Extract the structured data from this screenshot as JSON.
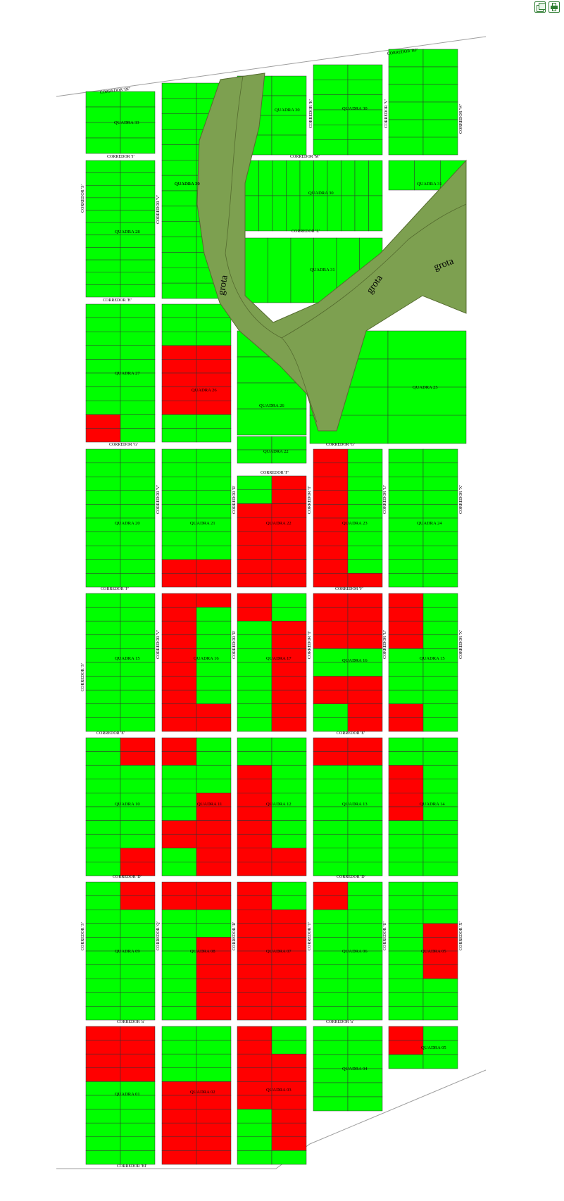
{
  "toolbar": {
    "copy_icon": "copy-icon",
    "print_icon": "print-icon"
  },
  "colors": {
    "available": "#00ff00",
    "sold": "#ff0000",
    "grota": "#7da050",
    "road": "#ffffff",
    "line": "#333333"
  },
  "grota_labels": [
    "grota",
    "grota",
    "grota"
  ],
  "corridors": [
    "CORREDOR 'BF'",
    "CORREDOR 'BF'",
    "CORREDOR 'J'",
    "CORREDOR 'M'",
    "CORREDOR 'L'",
    "CORREDOR 'H'",
    "CORREDOR 'G'",
    "CORREDOR 'G'",
    "CORREDOR 'F'",
    "CORREDOR 'F'",
    "CORREDOR 'F'",
    "CORREDOR 'E'",
    "CORREDOR 'E'",
    "CORREDOR 'D'",
    "CORREDOR 'D'",
    "CORREDOR 'a'",
    "CORREDOR 'a'",
    "CORREDOR 'BI'",
    "CORREDOR 'S'",
    "CORREDOR 'V'",
    "CORREDOR 'K'",
    "CORREDOR 'V'",
    "CORREDOR 'W'",
    "CORREDOR 'V'",
    "CORREDOR 'R'",
    "CORREDOR 'T'",
    "CORREDOR 'U'",
    "CORREDOR 'X'",
    "CORREDOR 'S'",
    "CORREDOR 'V'",
    "CORREDOR 'R'",
    "CORREDOR 'T'",
    "CORREDOR 'U'",
    "CORREDOR 'X'",
    "CORREDOR 'S'",
    "CORREDOR 'Q'",
    "CORREDOR 'R'",
    "CORREDOR 'T'",
    "CORREDOR 'U'",
    "CORREDOR 'X'"
  ],
  "quadras": [
    "QUADRA 33",
    "QUADRA 29",
    "QUADRA 30",
    "QUADRA 30",
    "QUADRA 28",
    "QUADRA 29",
    "QUADRA 30",
    "QUADRA 31",
    "QUADRA 31",
    "QUADRA 27",
    "QUADRA 26",
    "QUADRA 26",
    "QUADRA 25",
    "QUADRA 22",
    "QUADRA 20",
    "QUADRA 21",
    "QUADRA 22",
    "QUADRA 23",
    "QUADRA 24",
    "QUADRA 15",
    "QUADRA 16",
    "QUADRA 17",
    "QUADRA 16",
    "QUADRA 15",
    "QUADRA 10",
    "QUADRA 11",
    "QUADRA 12",
    "QUADRA 13",
    "QUADRA 14",
    "QUADRA 09",
    "QUADRA 08",
    "QUADRA 07",
    "QUADRA 06",
    "QUADRA 05",
    "QUADRA 01",
    "QUADRA 02",
    "QUADRA 03",
    "QUADRA 04",
    "QUADRA 05"
  ]
}
